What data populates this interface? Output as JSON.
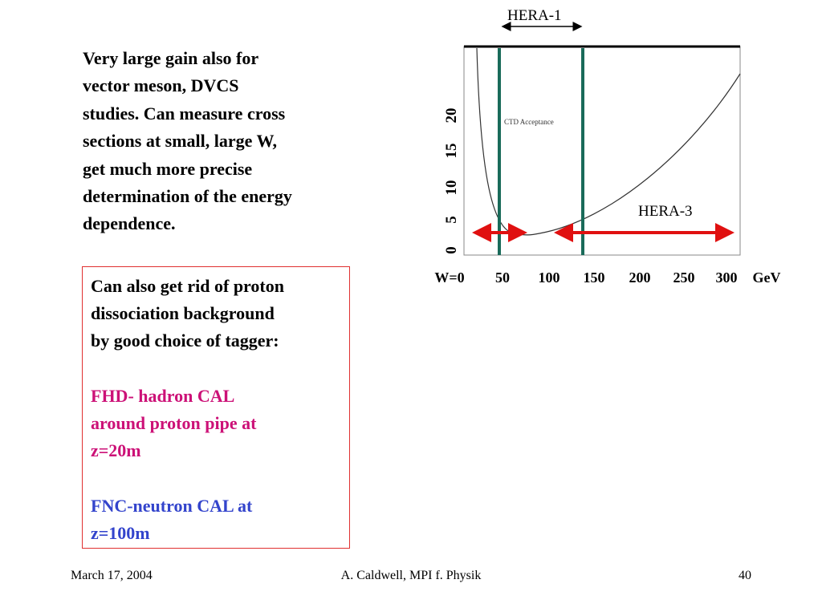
{
  "intro_lines": [
    "Very large gain also for",
    "vector meson, DVCS",
    "studies.  Can measure cross",
    "sections at small, large W,",
    "get much more precise",
    "determination of the energy",
    "dependence."
  ],
  "box": {
    "lines": [
      "Can also get rid of proton",
      "dissociation background",
      "by good choice of tagger:"
    ],
    "fhd_lines": [
      "FHD- hadron CAL",
      "around proton pipe at",
      "z=20m"
    ],
    "fnc_lines": [
      "FNC-neutron CAL at",
      "z=100m"
    ]
  },
  "figure": {
    "hera1": "HERA-1",
    "hera3": "HERA-3",
    "acceptance": "CTD Acceptance",
    "y_labels": [
      "0",
      "5",
      "10",
      "15",
      "20"
    ],
    "x_labels": [
      "W=0",
      "50",
      "100",
      "150",
      "200",
      "250",
      "300",
      "GeV"
    ]
  },
  "footer": {
    "date": "March 17, 2004",
    "author": "A. Caldwell, MPI f. Physik",
    "page": "40"
  }
}
